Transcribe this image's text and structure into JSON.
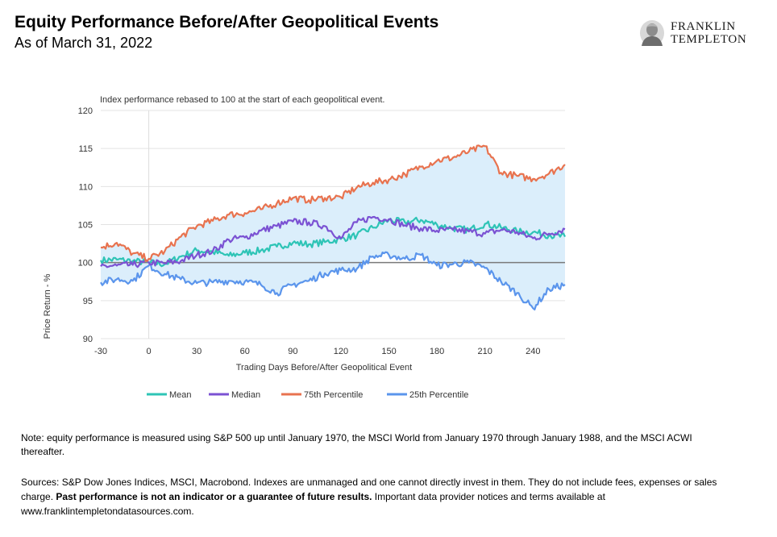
{
  "header": {
    "title": "Equity Performance Before/After Geopolitical Events",
    "subtitle": "As of March 31, 2022",
    "logo_line1": "FRANKLIN",
    "logo_line2": "TEMPLETON"
  },
  "chart_data": {
    "type": "line",
    "annotation": "Index performance rebased to 100 at the start of each geopolitical event.",
    "xlabel": "Trading Days Before/After Geopolitical Event",
    "ylabel": "Price Return - %",
    "xlim": [
      -30,
      260
    ],
    "ylim": [
      90,
      120
    ],
    "xticks": [
      -30,
      0,
      30,
      60,
      90,
      120,
      150,
      180,
      210,
      240
    ],
    "yticks": [
      90,
      95,
      100,
      105,
      110,
      115,
      120
    ],
    "reference_line": 100,
    "shaded_band": "between 25th and 75th Percentile",
    "grid": "horizontal",
    "legend_position": "bottom",
    "x": [
      -30,
      -20,
      -10,
      0,
      10,
      20,
      30,
      40,
      50,
      60,
      70,
      80,
      90,
      100,
      110,
      120,
      130,
      140,
      150,
      160,
      170,
      180,
      190,
      200,
      210,
      220,
      230,
      240,
      250,
      260
    ],
    "series": [
      {
        "name": "Mean",
        "color": "#2ec4b6",
        "values": [
          100.3,
          100.4,
          100.2,
          100.0,
          99.8,
          100.8,
          101.6,
          101.4,
          100.9,
          101.3,
          101.6,
          102.1,
          102.6,
          102.4,
          102.7,
          103.1,
          103.6,
          104.6,
          105.6,
          105.3,
          105.6,
          105.0,
          104.5,
          104.3,
          105.1,
          104.6,
          104.1,
          104.0,
          103.6,
          103.4
        ]
      },
      {
        "name": "Median",
        "color": "#7b52d3",
        "values": [
          99.5,
          99.6,
          99.7,
          100.0,
          99.9,
          100.2,
          101.0,
          101.5,
          103.0,
          103.3,
          104.2,
          104.8,
          105.4,
          105.3,
          104.8,
          103.2,
          105.3,
          106.0,
          105.7,
          104.9,
          104.5,
          104.2,
          104.3,
          104.1,
          103.8,
          104.3,
          104.0,
          103.2,
          103.8,
          104.4
        ]
      },
      {
        "name": "75th Percentile",
        "color": "#e8734f",
        "values": [
          102.0,
          102.6,
          101.2,
          100.5,
          101.5,
          103.4,
          104.8,
          105.5,
          106.3,
          106.5,
          107.0,
          107.8,
          108.5,
          108.2,
          108.5,
          108.6,
          109.9,
          110.5,
          110.9,
          111.6,
          112.6,
          113.4,
          113.8,
          114.6,
          115.3,
          111.8,
          111.4,
          111.0,
          111.7,
          112.9
        ]
      },
      {
        "name": "25th Percentile",
        "color": "#5b95ec",
        "values": [
          97.4,
          97.8,
          97.6,
          99.6,
          98.5,
          97.8,
          97.3,
          97.4,
          97.6,
          97.5,
          97.1,
          96.0,
          97.1,
          97.6,
          98.6,
          99.0,
          99.2,
          100.8,
          101.0,
          100.5,
          101.0,
          99.6,
          99.8,
          100.0,
          99.3,
          97.5,
          96.0,
          94.0,
          96.5,
          97.1
        ]
      }
    ]
  },
  "footer": {
    "note": "Note: equity performance is measured using S&P 500 up until January 1970, the MSCI World from January 1970 through January 1988, and the MSCI ACWI thereafter.",
    "sources_pre": "Sources: S&P Dow Jones Indices, MSCI, Macrobond. Indexes are unmanaged and one cannot directly invest in them. They do not include fees, expenses or sales charge. ",
    "sources_bold": "Past performance is not an indicator or a guarantee of future results.",
    "sources_post": " Important data provider notices and terms available at www.franklintempletondatasources.com."
  }
}
